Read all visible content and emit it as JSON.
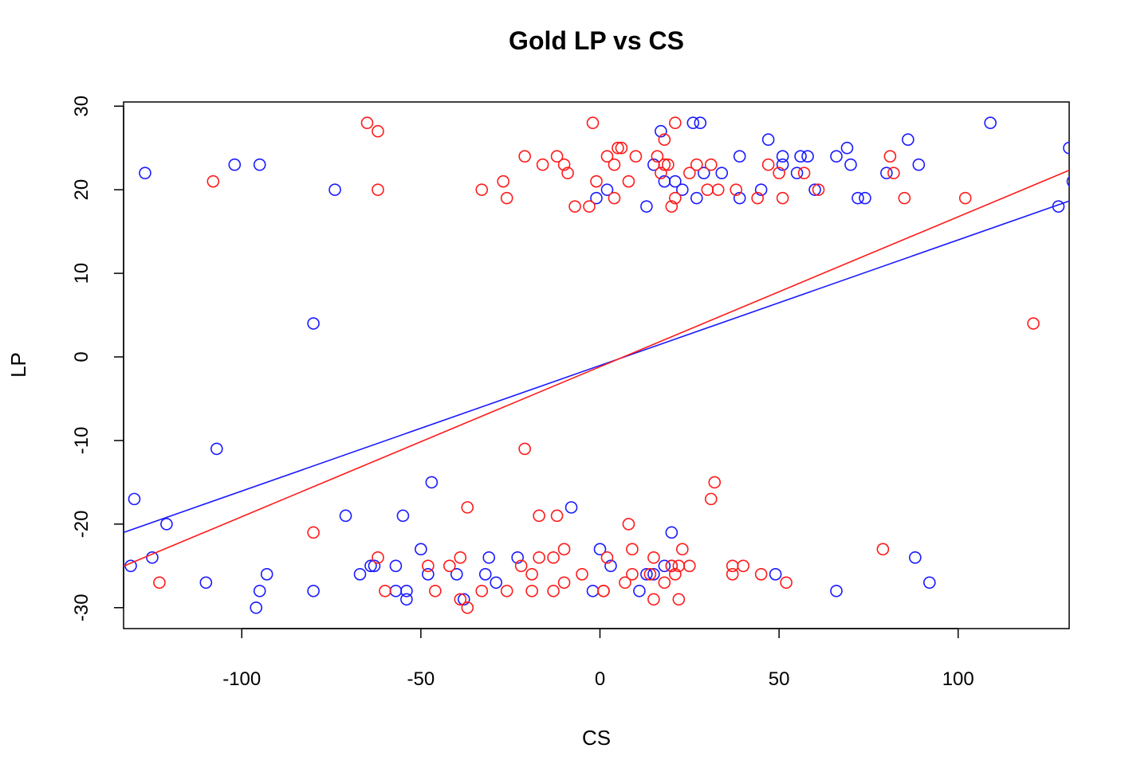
{
  "chart_data": {
    "type": "scatter",
    "title": "Gold LP vs CS",
    "xlabel": "CS",
    "ylabel": "LP",
    "xlim": [
      -133,
      131
    ],
    "ylim": [
      -32.5,
      30.5
    ],
    "xticks": [
      -100,
      -50,
      0,
      50,
      100
    ],
    "yticks": [
      -30,
      -20,
      -10,
      0,
      10,
      20,
      30
    ],
    "grid": false,
    "legend": "none",
    "series": [
      {
        "color": "#1a1aff",
        "marker": "open-circle",
        "points": [
          [
            -127,
            22
          ],
          [
            -102,
            23
          ],
          [
            -95,
            23
          ],
          [
            -74,
            20
          ],
          [
            -80,
            4
          ],
          [
            -107,
            -11
          ],
          [
            -130,
            -17
          ],
          [
            -121,
            -20
          ],
          [
            -125,
            -24
          ],
          [
            -131,
            -25
          ],
          [
            -110,
            -27
          ],
          [
            -96,
            -30
          ],
          [
            -95,
            -28
          ],
          [
            -93,
            -26
          ],
          [
            -80,
            -28
          ],
          [
            -71,
            -19
          ],
          [
            -67,
            -26
          ],
          [
            -64,
            -25
          ],
          [
            -63,
            -25
          ],
          [
            -57,
            -25
          ],
          [
            -57,
            -28
          ],
          [
            -55,
            -19
          ],
          [
            -54,
            -29
          ],
          [
            -54,
            -28
          ],
          [
            -50,
            -23
          ],
          [
            -48,
            -26
          ],
          [
            -47,
            -15
          ],
          [
            -40,
            -26
          ],
          [
            -38,
            -29
          ],
          [
            -32,
            -26
          ],
          [
            -31,
            -24
          ],
          [
            -29,
            -27
          ],
          [
            -23,
            -24
          ],
          [
            -8,
            -18
          ],
          [
            -2,
            -28
          ],
          [
            0,
            -23
          ],
          [
            3,
            -25
          ],
          [
            11,
            -28
          ],
          [
            13,
            -26
          ],
          [
            15,
            -26
          ],
          [
            18,
            -25
          ],
          [
            20,
            -25
          ],
          [
            20,
            -21
          ],
          [
            49,
            -26
          ],
          [
            66,
            -28
          ],
          [
            88,
            -24
          ],
          [
            92,
            -27
          ],
          [
            -1,
            19
          ],
          [
            2,
            20
          ],
          [
            13,
            18
          ],
          [
            15,
            23
          ],
          [
            17,
            27
          ],
          [
            18,
            21
          ],
          [
            21,
            21
          ],
          [
            23,
            20
          ],
          [
            26,
            28
          ],
          [
            27,
            19
          ],
          [
            28,
            28
          ],
          [
            29,
            22
          ],
          [
            34,
            22
          ],
          [
            39,
            19
          ],
          [
            39,
            24
          ],
          [
            45,
            20
          ],
          [
            47,
            26
          ],
          [
            51,
            23
          ],
          [
            51,
            24
          ],
          [
            55,
            22
          ],
          [
            56,
            24
          ],
          [
            58,
            24
          ],
          [
            60,
            20
          ],
          [
            66,
            24
          ],
          [
            69,
            25
          ],
          [
            70,
            23
          ],
          [
            72,
            19
          ],
          [
            74,
            19
          ],
          [
            80,
            22
          ],
          [
            86,
            26
          ],
          [
            89,
            23
          ],
          [
            109,
            28
          ],
          [
            128,
            18
          ],
          [
            131,
            25
          ],
          [
            132,
            21
          ]
        ],
        "fit": {
          "slope": 0.1502,
          "intercept": -1.025
        }
      },
      {
        "color": "#ff1a1a",
        "marker": "open-circle",
        "points": [
          [
            -108,
            21
          ],
          [
            -65,
            28
          ],
          [
            -62,
            27
          ],
          [
            -62,
            20
          ],
          [
            -33,
            20
          ],
          [
            -27,
            21
          ],
          [
            -26,
            19
          ],
          [
            -21,
            24
          ],
          [
            -16,
            23
          ],
          [
            -12,
            24
          ],
          [
            -10,
            23
          ],
          [
            -9,
            22
          ],
          [
            -7,
            18
          ],
          [
            -3,
            18
          ],
          [
            -2,
            28
          ],
          [
            -1,
            21
          ],
          [
            2,
            24
          ],
          [
            4,
            19
          ],
          [
            4,
            23
          ],
          [
            5,
            25
          ],
          [
            6,
            25
          ],
          [
            8,
            21
          ],
          [
            10,
            24
          ],
          [
            16,
            24
          ],
          [
            17,
            22
          ],
          [
            18,
            26
          ],
          [
            18,
            23
          ],
          [
            19,
            23
          ],
          [
            20,
            18
          ],
          [
            21,
            19
          ],
          [
            21,
            28
          ],
          [
            25,
            22
          ],
          [
            27,
            23
          ],
          [
            30,
            20
          ],
          [
            31,
            23
          ],
          [
            33,
            20
          ],
          [
            38,
            20
          ],
          [
            44,
            19
          ],
          [
            47,
            23
          ],
          [
            50,
            22
          ],
          [
            51,
            19
          ],
          [
            57,
            22
          ],
          [
            61,
            20
          ],
          [
            81,
            24
          ],
          [
            82,
            22
          ],
          [
            85,
            19
          ],
          [
            102,
            19
          ],
          [
            121,
            4
          ],
          [
            -123,
            -27
          ],
          [
            -80,
            -21
          ],
          [
            -62,
            -24
          ],
          [
            -60,
            -28
          ],
          [
            -48,
            -25
          ],
          [
            -46,
            -28
          ],
          [
            -42,
            -25
          ],
          [
            -39,
            -29
          ],
          [
            -39,
            -24
          ],
          [
            -37,
            -30
          ],
          [
            -37,
            -18
          ],
          [
            -33,
            -28
          ],
          [
            -26,
            -28
          ],
          [
            -22,
            -25
          ],
          [
            -21,
            -11
          ],
          [
            -19,
            -26
          ],
          [
            -19,
            -28
          ],
          [
            -17,
            -24
          ],
          [
            -17,
            -19
          ],
          [
            -13,
            -28
          ],
          [
            -13,
            -24
          ],
          [
            -12,
            -19
          ],
          [
            -10,
            -23
          ],
          [
            -10,
            -27
          ],
          [
            -5,
            -26
          ],
          [
            1,
            -28
          ],
          [
            1,
            -28
          ],
          [
            2,
            -24
          ],
          [
            7,
            -27
          ],
          [
            8,
            -20
          ],
          [
            9,
            -23
          ],
          [
            9,
            -26
          ],
          [
            14,
            -26
          ],
          [
            15,
            -29
          ],
          [
            15,
            -24
          ],
          [
            18,
            -27
          ],
          [
            20,
            -25
          ],
          [
            21,
            -26
          ],
          [
            22,
            -25
          ],
          [
            22,
            -29
          ],
          [
            23,
            -23
          ],
          [
            25,
            -25
          ],
          [
            31,
            -17
          ],
          [
            32,
            -15
          ],
          [
            37,
            -25
          ],
          [
            37,
            -26
          ],
          [
            40,
            -25
          ],
          [
            45,
            -26
          ],
          [
            52,
            -27
          ],
          [
            79,
            -23
          ]
        ],
        "fit": {
          "slope": 0.1794,
          "intercept": -1.175
        }
      }
    ]
  }
}
